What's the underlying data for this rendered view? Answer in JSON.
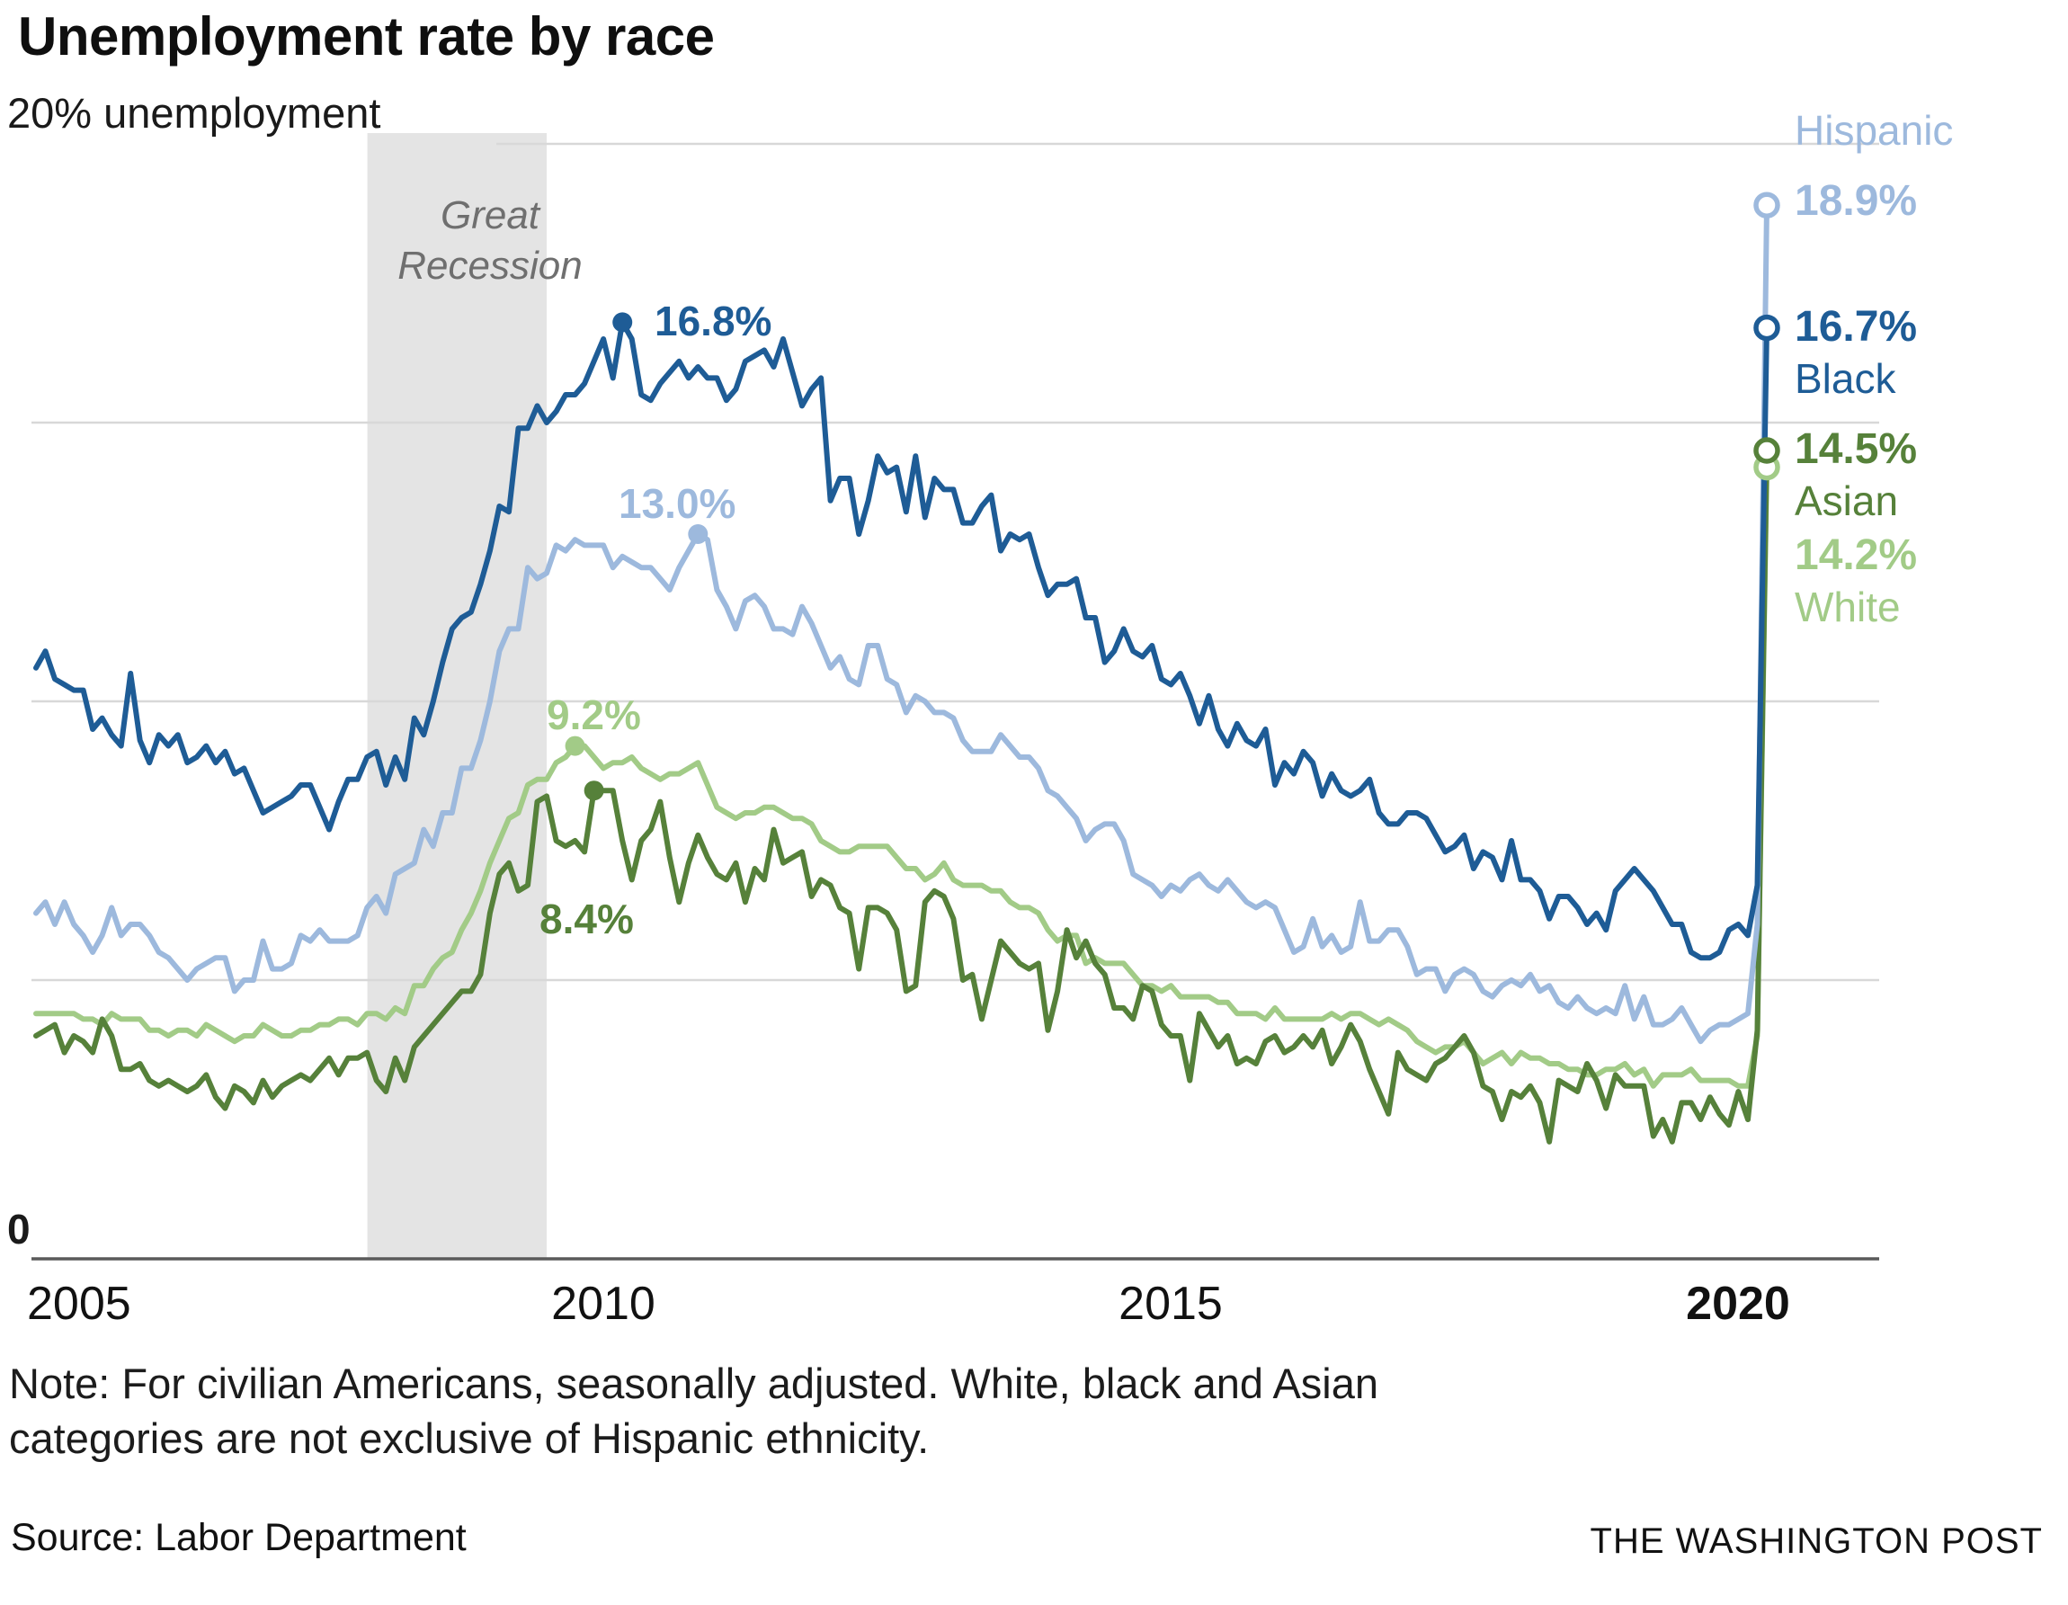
{
  "title": "Unemployment rate by race",
  "top_axis_label": "20% unemployment",
  "zero_label": "0",
  "recession_label_line1": "Great",
  "recession_label_line2": "Recession",
  "x_ticks": [
    "2005",
    "2010",
    "2015",
    "2020"
  ],
  "note_line1": "Note: For civilian Americans, seasonally adjusted. White, black and Asian",
  "note_line2": "categories are not exclusive of Hispanic ethnicity.",
  "source": "Source: Labor Department",
  "credit": "THE WASHINGTON POST",
  "end_labels": {
    "hispanic": {
      "name": "Hispanic",
      "value": "18.9%"
    },
    "black": {
      "name": "Black",
      "value": "16.7%"
    },
    "asian": {
      "name": "Asian",
      "value": "14.5%"
    },
    "white": {
      "name": "White",
      "value": "14.2%"
    }
  },
  "colors": {
    "black_series": "#1e5c96",
    "hispanic_series": "#9db9dd",
    "asian_series": "#56813a",
    "white_series": "#a2cb87",
    "grid": "#d8d8d8",
    "band": "#e4e4e4",
    "axis": "#5a5a5a"
  },
  "chart_data": {
    "type": "line",
    "title": "Unemployment rate by race",
    "ylabel": "unemployment rate (%)",
    "ylim": [
      0,
      20
    ],
    "y_gridlines": [
      5,
      10,
      15,
      20
    ],
    "x_range": [
      2005.0,
      2020.25
    ],
    "x_unit": "monthly, Jan 2005 - Apr 2020",
    "x_tick_values": [
      2005,
      2010,
      2015,
      2020
    ],
    "recession_band": [
      2007.92,
      2009.5
    ],
    "recession_band_label": "Great Recession",
    "legend_position": "right-end-of-lines",
    "grid": true,
    "peaks": [
      {
        "label": "16.8%",
        "series": "Black",
        "color": "black_series",
        "t": 2010.167,
        "v": 16.8
      },
      {
        "label": "13.0%",
        "series": "Hispanic",
        "color": "hispanic_series",
        "t": 2010.833,
        "v": 13.0
      },
      {
        "label": "9.2%",
        "series": "White",
        "color": "white_series",
        "t": 2009.75,
        "v": 9.2
      },
      {
        "label": "8.4%",
        "series": "Asian",
        "color": "asian_series",
        "t": 2009.917,
        "v": 8.4
      }
    ],
    "series": [
      {
        "name": "White",
        "color": "white_series",
        "end_value": 14.2,
        "values": [
          4.4,
          4.4,
          4.4,
          4.4,
          4.4,
          4.3,
          4.3,
          4.2,
          4.4,
          4.3,
          4.3,
          4.3,
          4.1,
          4.1,
          4.0,
          4.1,
          4.1,
          4.0,
          4.2,
          4.1,
          4.0,
          3.9,
          4.0,
          4.0,
          4.2,
          4.1,
          4.0,
          4.0,
          4.1,
          4.1,
          4.2,
          4.2,
          4.3,
          4.3,
          4.2,
          4.4,
          4.4,
          4.3,
          4.5,
          4.4,
          4.9,
          4.9,
          5.2,
          5.4,
          5.5,
          5.9,
          6.2,
          6.6,
          7.1,
          7.5,
          7.9,
          8.0,
          8.5,
          8.6,
          8.6,
          8.9,
          9.0,
          9.2,
          9.2,
          9.0,
          8.8,
          8.9,
          8.9,
          9.0,
          8.8,
          8.7,
          8.6,
          8.7,
          8.7,
          8.8,
          8.9,
          8.5,
          8.1,
          8.0,
          7.9,
          8.0,
          8.0,
          8.1,
          8.1,
          8.0,
          7.9,
          7.9,
          7.8,
          7.5,
          7.4,
          7.3,
          7.3,
          7.4,
          7.4,
          7.4,
          7.4,
          7.2,
          7.0,
          7.0,
          6.8,
          6.9,
          7.1,
          6.8,
          6.7,
          6.7,
          6.7,
          6.6,
          6.6,
          6.4,
          6.3,
          6.3,
          6.2,
          5.9,
          5.7,
          5.8,
          5.8,
          5.3,
          5.4,
          5.3,
          5.3,
          5.3,
          5.1,
          4.9,
          4.9,
          4.8,
          4.9,
          4.7,
          4.7,
          4.7,
          4.7,
          4.6,
          4.6,
          4.4,
          4.4,
          4.4,
          4.3,
          4.5,
          4.3,
          4.3,
          4.3,
          4.3,
          4.3,
          4.4,
          4.3,
          4.4,
          4.4,
          4.3,
          4.2,
          4.3,
          4.2,
          4.1,
          3.9,
          3.8,
          3.7,
          3.8,
          3.8,
          3.9,
          3.7,
          3.5,
          3.6,
          3.7,
          3.5,
          3.7,
          3.6,
          3.6,
          3.5,
          3.5,
          3.4,
          3.4,
          3.3,
          3.3,
          3.4,
          3.4,
          3.5,
          3.3,
          3.4,
          3.1,
          3.3,
          3.3,
          3.3,
          3.4,
          3.2,
          3.2,
          3.2,
          3.2,
          3.1,
          3.1,
          4.0,
          14.2
        ]
      },
      {
        "name": "Asian",
        "color": "asian_series",
        "end_value": 14.5,
        "values": [
          4.0,
          4.1,
          4.2,
          3.7,
          4.0,
          3.9,
          3.7,
          4.3,
          4.0,
          3.4,
          3.4,
          3.5,
          3.2,
          3.1,
          3.2,
          3.1,
          3.0,
          3.1,
          3.3,
          2.9,
          2.7,
          3.1,
          3.0,
          2.8,
          3.2,
          2.9,
          3.1,
          3.2,
          3.3,
          3.2,
          3.4,
          3.6,
          3.3,
          3.6,
          3.6,
          3.7,
          3.2,
          3.0,
          3.6,
          3.2,
          3.8,
          4.0,
          4.2,
          4.4,
          4.6,
          4.8,
          4.8,
          5.1,
          6.2,
          6.9,
          7.1,
          6.6,
          6.7,
          8.2,
          8.3,
          7.5,
          7.4,
          7.5,
          7.3,
          8.4,
          8.4,
          8.4,
          7.5,
          6.8,
          7.5,
          7.7,
          8.2,
          7.2,
          6.4,
          7.1,
          7.6,
          7.2,
          6.9,
          6.8,
          7.1,
          6.4,
          7.0,
          6.8,
          7.7,
          7.1,
          7.2,
          7.3,
          6.5,
          6.8,
          6.7,
          6.3,
          6.2,
          5.2,
          6.3,
          6.3,
          6.2,
          5.9,
          4.8,
          4.9,
          6.4,
          6.6,
          6.5,
          6.1,
          5.0,
          5.1,
          4.3,
          5.0,
          5.7,
          5.5,
          5.3,
          5.2,
          5.3,
          4.1,
          4.8,
          5.9,
          5.4,
          5.7,
          5.3,
          5.1,
          4.5,
          4.5,
          4.3,
          4.9,
          4.8,
          4.2,
          4.0,
          4.0,
          3.2,
          4.4,
          4.1,
          3.8,
          4.0,
          3.5,
          3.6,
          3.5,
          3.9,
          4.0,
          3.7,
          3.8,
          4.0,
          3.8,
          4.1,
          3.5,
          3.8,
          4.2,
          3.9,
          3.4,
          3.0,
          2.6,
          3.7,
          3.4,
          3.3,
          3.2,
          3.5,
          3.6,
          3.8,
          4.0,
          3.7,
          3.1,
          3.0,
          2.5,
          3.0,
          2.9,
          3.1,
          2.8,
          2.1,
          3.2,
          3.1,
          3.0,
          3.5,
          3.2,
          2.7,
          3.3,
          3.1,
          3.1,
          3.1,
          2.2,
          2.5,
          2.1,
          2.8,
          2.8,
          2.5,
          2.9,
          2.6,
          2.4,
          3.0,
          2.5,
          4.1,
          14.5
        ]
      },
      {
        "name": "Hispanic",
        "color": "hispanic_series",
        "end_value": 18.9,
        "values": [
          6.2,
          6.4,
          6.0,
          6.4,
          6.0,
          5.8,
          5.5,
          5.8,
          6.3,
          5.8,
          6.0,
          6.0,
          5.8,
          5.5,
          5.4,
          5.2,
          5.0,
          5.2,
          5.3,
          5.4,
          5.4,
          4.8,
          5.0,
          5.0,
          5.7,
          5.2,
          5.2,
          5.3,
          5.8,
          5.7,
          5.9,
          5.7,
          5.7,
          5.7,
          5.8,
          6.3,
          6.5,
          6.2,
          6.9,
          7.0,
          7.1,
          7.7,
          7.4,
          8.0,
          8.0,
          8.8,
          8.8,
          9.3,
          10.0,
          10.9,
          11.3,
          11.3,
          12.4,
          12.2,
          12.3,
          12.8,
          12.7,
          12.9,
          12.8,
          12.8,
          12.8,
          12.4,
          12.6,
          12.5,
          12.4,
          12.4,
          12.2,
          12.0,
          12.4,
          12.7,
          13.0,
          12.9,
          12.0,
          11.7,
          11.3,
          11.8,
          11.9,
          11.7,
          11.3,
          11.3,
          11.2,
          11.7,
          11.4,
          11.0,
          10.6,
          10.8,
          10.4,
          10.3,
          11.0,
          11.0,
          10.4,
          10.3,
          9.8,
          10.1,
          10.0,
          9.8,
          9.8,
          9.7,
          9.3,
          9.1,
          9.1,
          9.1,
          9.4,
          9.2,
          9.0,
          9.0,
          8.8,
          8.4,
          8.3,
          8.1,
          7.9,
          7.5,
          7.7,
          7.8,
          7.8,
          7.5,
          6.9,
          6.8,
          6.7,
          6.5,
          6.7,
          6.6,
          6.8,
          6.9,
          6.7,
          6.6,
          6.8,
          6.6,
          6.4,
          6.3,
          6.4,
          6.3,
          5.9,
          5.5,
          5.6,
          6.1,
          5.6,
          5.8,
          5.5,
          5.6,
          6.4,
          5.7,
          5.7,
          5.9,
          5.9,
          5.6,
          5.1,
          5.2,
          5.2,
          4.8,
          5.1,
          5.2,
          5.1,
          4.8,
          4.7,
          4.9,
          5.0,
          4.9,
          5.1,
          4.8,
          4.9,
          4.6,
          4.5,
          4.7,
          4.5,
          4.4,
          4.5,
          4.4,
          4.9,
          4.3,
          4.7,
          4.2,
          4.2,
          4.3,
          4.5,
          4.2,
          3.9,
          4.1,
          4.2,
          4.2,
          4.3,
          4.4,
          6.0,
          18.9
        ]
      },
      {
        "name": "Black",
        "color": "black_series",
        "end_value": 16.7,
        "values": [
          10.6,
          10.9,
          10.4,
          10.3,
          10.2,
          10.2,
          9.5,
          9.7,
          9.4,
          9.2,
          10.5,
          9.3,
          8.9,
          9.4,
          9.2,
          9.4,
          8.9,
          9.0,
          9.2,
          8.9,
          9.1,
          8.7,
          8.8,
          8.4,
          8.0,
          8.1,
          8.2,
          8.3,
          8.5,
          8.5,
          8.1,
          7.7,
          8.2,
          8.6,
          8.6,
          9.0,
          9.1,
          8.5,
          9.0,
          8.6,
          9.7,
          9.4,
          10.0,
          10.7,
          11.3,
          11.5,
          11.6,
          12.1,
          12.7,
          13.5,
          13.4,
          14.9,
          14.9,
          15.3,
          15.0,
          15.2,
          15.5,
          15.5,
          15.7,
          16.1,
          16.5,
          15.8,
          16.8,
          16.5,
          15.5,
          15.4,
          15.7,
          15.9,
          16.1,
          15.8,
          16.0,
          15.8,
          15.8,
          15.4,
          15.6,
          16.1,
          16.2,
          16.3,
          16.0,
          16.5,
          15.9,
          15.3,
          15.6,
          15.8,
          13.6,
          14.0,
          14.0,
          13.0,
          13.6,
          14.4,
          14.1,
          14.2,
          13.4,
          14.4,
          13.3,
          14.0,
          13.8,
          13.8,
          13.2,
          13.2,
          13.5,
          13.7,
          12.7,
          13.0,
          12.9,
          13.0,
          12.4,
          11.9,
          12.1,
          12.1,
          12.2,
          11.5,
          11.5,
          10.7,
          10.9,
          11.3,
          10.9,
          10.8,
          11.0,
          10.4,
          10.3,
          10.5,
          10.1,
          9.6,
          10.1,
          9.5,
          9.2,
          9.6,
          9.3,
          9.2,
          9.5,
          8.5,
          8.9,
          8.7,
          9.1,
          8.9,
          8.3,
          8.7,
          8.4,
          8.3,
          8.4,
          8.6,
          8.0,
          7.8,
          7.8,
          8.0,
          8.0,
          7.9,
          7.6,
          7.3,
          7.4,
          7.6,
          7.0,
          7.3,
          7.2,
          6.8,
          7.5,
          6.8,
          6.8,
          6.6,
          6.1,
          6.5,
          6.5,
          6.3,
          6.0,
          6.2,
          5.9,
          6.6,
          6.8,
          7.0,
          6.8,
          6.6,
          6.3,
          6.0,
          6.0,
          5.5,
          5.4,
          5.4,
          5.5,
          5.9,
          6.0,
          5.8,
          6.7,
          16.7
        ]
      }
    ]
  }
}
